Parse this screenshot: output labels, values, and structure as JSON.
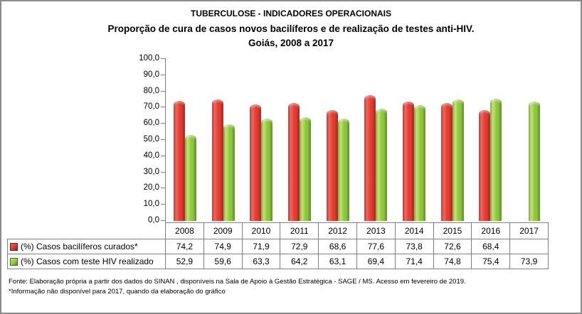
{
  "chart_data": {
    "type": "bar",
    "title": {
      "line1": "TUBERCULOSE - INDICADORES OPERACIONAIS",
      "line2": "Proporção de cura de casos novos bacilíferos e de realização de testes anti-HIV.",
      "line3": "Goiás, 2008 a 2017"
    },
    "categories": [
      "2008",
      "2009",
      "2010",
      "2011",
      "2012",
      "2013",
      "2014",
      "2015",
      "2016",
      "2017"
    ],
    "series": [
      {
        "name": "(%) Casos bacilíferos curados*",
        "color": "#e23b30",
        "values": [
          74.2,
          74.9,
          71.9,
          72.9,
          68.6,
          77.6,
          73.8,
          72.6,
          68.4,
          null
        ]
      },
      {
        "name": "(%) Casos com teste HIV realizado",
        "color": "#8cc63e",
        "values": [
          52.9,
          59.6,
          63.3,
          64.2,
          63.1,
          69.4,
          71.4,
          74.8,
          75.4,
          73.9
        ]
      }
    ],
    "xlabel": "",
    "ylabel": "",
    "ylim": [
      0,
      100
    ],
    "ytick_step": 10,
    "ytick_labels": [
      "0,0",
      "10,0",
      "20,0",
      "30,0",
      "40,0",
      "50,0",
      "60,0",
      "70,0",
      "80,0",
      "90,0",
      "100,0"
    ],
    "grid": false,
    "legend_position": "table-left",
    "data_labels": false
  },
  "table": {
    "header": [
      "2008",
      "2009",
      "2010",
      "2011",
      "2012",
      "2013",
      "2014",
      "2015",
      "2016",
      "2017"
    ],
    "rows": [
      {
        "label": "(%) Casos bacilíferos curados*",
        "marker_color": "#cc3a31",
        "values": [
          "74,2",
          "74,9",
          "71,9",
          "72,9",
          "68,6",
          "77,6",
          "73,8",
          "72,6",
          "68,4",
          ""
        ]
      },
      {
        "label": "(%) Casos com teste HIV realizado",
        "marker_color": "#8cc63e",
        "values": [
          "52,9",
          "59,6",
          "63,3",
          "64,2",
          "63,1",
          "69,4",
          "71,4",
          "74,8",
          "75,4",
          "73,9"
        ]
      }
    ]
  },
  "footer": {
    "line1": "Fonte: Elaboração própria a partir dos dados do SINAN , disponíveis na Sala de Apoio à Gestão Estratégica - SAGE / MS. Acesso em fevereiro de 2019.",
    "line2": "*Informação não disponível para 2017, quando da elaboração do gráfico"
  },
  "colors": {
    "bar_red": "#e23b30",
    "bar_green": "#8cc63e",
    "axis_grey": "#808080",
    "table_border": "#7f7f7f",
    "frame_border": "#8c8c8c",
    "text": "#000000"
  }
}
